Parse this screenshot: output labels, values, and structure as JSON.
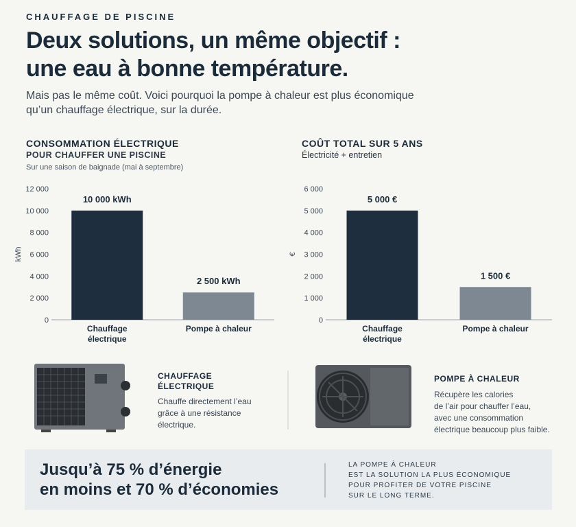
{
  "header": {
    "eyebrow": "CHAUFFAGE DE PISCINE",
    "title_lines": [
      "Deux solutions, un même objectif :",
      "une eau à bonne température."
    ],
    "intro_lines": [
      "Mais pas le même coût. Voici pourquoi la pompe à chaleur est plus économique",
      "qu’un chauffage électrique, sur la durée."
    ]
  },
  "chart_data": [
    {
      "type": "bar",
      "title": "CONSOMMATION ÉLECTRIQUE",
      "subtitle": "POUR CHAUFFER UNE PISCINE",
      "note": "Sur une saison de baignade (mai à septembre)",
      "y_label": "kWh",
      "categories": [
        "Chauffage électrique",
        "Pompe à chaleur"
      ],
      "values": [
        10000,
        2500
      ],
      "value_labels": [
        "10 000 kWh",
        "2 500 kWh"
      ],
      "colors": [
        "#1f2e3e",
        "#7d8893"
      ],
      "ylim": [
        0,
        12000
      ],
      "yticks": [
        0,
        {
          "value": 2000,
          "label": "2 000"
        },
        {
          "value": 4000,
          "label": "4 000"
        },
        {
          "value": 6000,
          "label": "6 000"
        },
        {
          "value": 8000,
          "label": "8 000"
        },
        {
          "value": 10000,
          "label": "10 000"
        },
        {
          "value": 12000,
          "label": "12 000"
        }
      ]
    },
    {
      "type": "bar",
      "title": "COÛT TOTAL SUR 5 ANS",
      "subtitle": "Électricité + entretien",
      "y_label": "€",
      "categories": [
        "Chauffage électrique",
        "Pompe à chaleur"
      ],
      "values": [
        5000,
        1500
      ],
      "value_labels": [
        "5 000 €",
        "1 500 €"
      ],
      "colors": [
        "#1f2e3e",
        "#7d8893"
      ],
      "ylim": [
        0,
        6000
      ],
      "yticks": [
        0,
        {
          "value": 1000,
          "label": "1 000"
        },
        {
          "value": 2000,
          "label": "2 000"
        },
        {
          "value": 3000,
          "label": "3 000"
        },
        {
          "value": 4000,
          "label": "4 000"
        },
        {
          "value": 5000,
          "label": "5 000"
        },
        {
          "value": 6000,
          "label": "6 000"
        }
      ]
    }
  ],
  "cards": [
    {
      "title_lines": [
        "CHAUFFAGE",
        "ÉLECTRIQUE"
      ],
      "text_lines": [
        "Chauffe directement l’eau",
        "grâce à une résistance",
        "électrique."
      ]
    },
    {
      "title_lines": [
        "POMPE À CHALEUR"
      ],
      "text_lines": [
        "Récupère les calories",
        "de l’air pour chauffer l’eau,",
        "avec une consommation",
        "électrique beaucoup plus faible."
      ]
    }
  ],
  "banner": {
    "headline_lines": [
      "Jusqu’à 75 % d’énergie",
      "en moins et 70 % d’économies"
    ],
    "side_lines": [
      "LA POMPE À CHALEUR",
      "EST LA SOLUTION LA PLUS ÉCONOMIQUE",
      "POUR PROFITER DE VOTRE PISCINE",
      "SUR LE LONG TERME."
    ]
  }
}
